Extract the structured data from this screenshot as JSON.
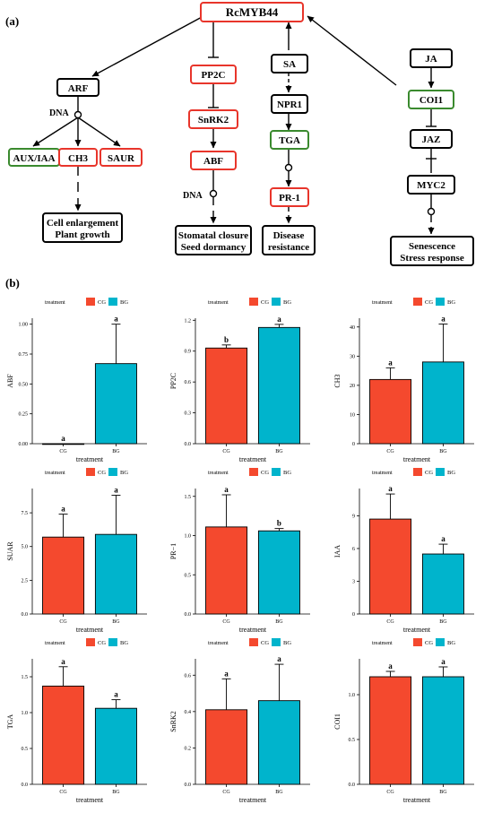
{
  "panel_a": {
    "letter": "(a)",
    "nodes": {
      "rcmyb44": "RcMYB44",
      "arf": "ARF",
      "aux_iaa": "AUX/IAA",
      "ch3": "CH3",
      "saur": "SAUR",
      "cell_outcome": [
        "Cell enlargement",
        "Plant growth"
      ],
      "pp2c": "PP2C",
      "snrk2": "SnRK2",
      "abf": "ABF",
      "stomatal_outcome": [
        "Stomatal closure",
        "Seed dormancy"
      ],
      "sa": "SA",
      "npr1": "NPR1",
      "tga": "TGA",
      "pr1": "PR-1",
      "disease_outcome": [
        "Disease",
        "resistance"
      ],
      "ja": "JA",
      "coi1": "COI1",
      "jaz": "JAZ",
      "myc2": "MYC2",
      "senescence_outcome": [
        "Senescence",
        "Stress response"
      ]
    },
    "dna_label": "DNA",
    "colors": {
      "red_box": "#e8352b",
      "green_box": "#3a8a2e",
      "black_box": "#000000"
    }
  },
  "panel_b": {
    "letter": "(b)",
    "legend_title": "treatment",
    "x_axis_label": "treatment",
    "colors": {
      "CG": "#f4492e",
      "BG": "#00b4cc"
    }
  },
  "chart_data": [
    {
      "type": "bar",
      "ylabel": "ABF",
      "xlabel": "treatment",
      "categories": [
        "CG",
        "BG"
      ],
      "values": [
        0.0,
        0.67
      ],
      "errors": [
        0.0,
        0.33
      ],
      "sig": [
        "a",
        "a"
      ],
      "ylim": [
        0,
        1.05
      ],
      "yticks": [
        "0.00",
        "0.25",
        "0.50",
        "0.75",
        "1.00"
      ],
      "legend": [
        "CG",
        "BG"
      ]
    },
    {
      "type": "bar",
      "ylabel": "PP2C",
      "xlabel": "treatment",
      "categories": [
        "CG",
        "BG"
      ],
      "values": [
        0.93,
        1.13
      ],
      "errors": [
        0.03,
        0.03
      ],
      "sig": [
        "b",
        "a"
      ],
      "ylim": [
        0,
        1.22
      ],
      "yticks": [
        "0.0",
        "0.3",
        "0.6",
        "0.9",
        "1.2"
      ],
      "legend": [
        "CG",
        "BG"
      ]
    },
    {
      "type": "bar",
      "ylabel": "CH3",
      "xlabel": "treatment",
      "categories": [
        "CG",
        "BG"
      ],
      "values": [
        22,
        28
      ],
      "errors": [
        4,
        13
      ],
      "sig": [
        "a",
        "a"
      ],
      "ylim": [
        0,
        43
      ],
      "yticks": [
        "0",
        "10",
        "20",
        "30",
        "40"
      ],
      "legend": [
        "CG",
        "BG"
      ]
    },
    {
      "type": "bar",
      "ylabel": "SUAR",
      "xlabel": "treatment",
      "categories": [
        "CG",
        "BG"
      ],
      "values": [
        5.7,
        5.9
      ],
      "errors": [
        1.7,
        2.9
      ],
      "sig": [
        "a",
        "a"
      ],
      "ylim": [
        0,
        9.3
      ],
      "yticks": [
        "0.0",
        "2.5",
        "5.0",
        "7.5"
      ],
      "legend": [
        "CG",
        "BG"
      ]
    },
    {
      "type": "bar",
      "ylabel": "PR−1",
      "xlabel": "treatment",
      "categories": [
        "CG",
        "BG"
      ],
      "values": [
        1.11,
        1.06
      ],
      "errors": [
        0.41,
        0.03
      ],
      "sig": [
        "a",
        "b"
      ],
      "ylim": [
        0,
        1.6
      ],
      "yticks": [
        "0.0",
        "0.5",
        "1.0",
        "1.5"
      ],
      "legend": [
        "CG",
        "BG"
      ]
    },
    {
      "type": "bar",
      "ylabel": "IAA",
      "xlabel": "treatment",
      "categories": [
        "CG",
        "BG"
      ],
      "values": [
        8.7,
        5.5
      ],
      "errors": [
        2.3,
        0.9
      ],
      "sig": [
        "a",
        "a"
      ],
      "ylim": [
        0,
        11.5
      ],
      "yticks": [
        "0",
        "3",
        "6",
        "9"
      ],
      "legend": [
        "CG",
        "BG"
      ]
    },
    {
      "type": "bar",
      "ylabel": "TGA",
      "xlabel": "treatment",
      "categories": [
        "CG",
        "BG"
      ],
      "values": [
        1.37,
        1.06
      ],
      "errors": [
        0.27,
        0.12
      ],
      "sig": [
        "a",
        "a"
      ],
      "ylim": [
        0,
        1.75
      ],
      "yticks": [
        "0.0",
        "0.5",
        "1.0",
        "1.5"
      ],
      "legend": [
        "CG",
        "BG"
      ]
    },
    {
      "type": "bar",
      "ylabel": "SnRK2",
      "xlabel": "treatment",
      "categories": [
        "CG",
        "BG"
      ],
      "values": [
        0.41,
        0.46
      ],
      "errors": [
        0.17,
        0.2
      ],
      "sig": [
        "a",
        "a"
      ],
      "ylim": [
        0,
        0.69
      ],
      "yticks": [
        "0.0",
        "0.2",
        "0.4",
        "0.6"
      ],
      "legend": [
        "CG",
        "BG"
      ]
    },
    {
      "type": "bar",
      "ylabel": "COI1",
      "xlabel": "treatment",
      "categories": [
        "CG",
        "BG"
      ],
      "values": [
        1.2,
        1.2
      ],
      "errors": [
        0.06,
        0.11
      ],
      "sig": [
        "a",
        "a"
      ],
      "ylim": [
        0,
        1.4
      ],
      "yticks": [
        "0.0",
        "0.5",
        "1.0"
      ],
      "legend": [
        "CG",
        "BG"
      ]
    }
  ]
}
